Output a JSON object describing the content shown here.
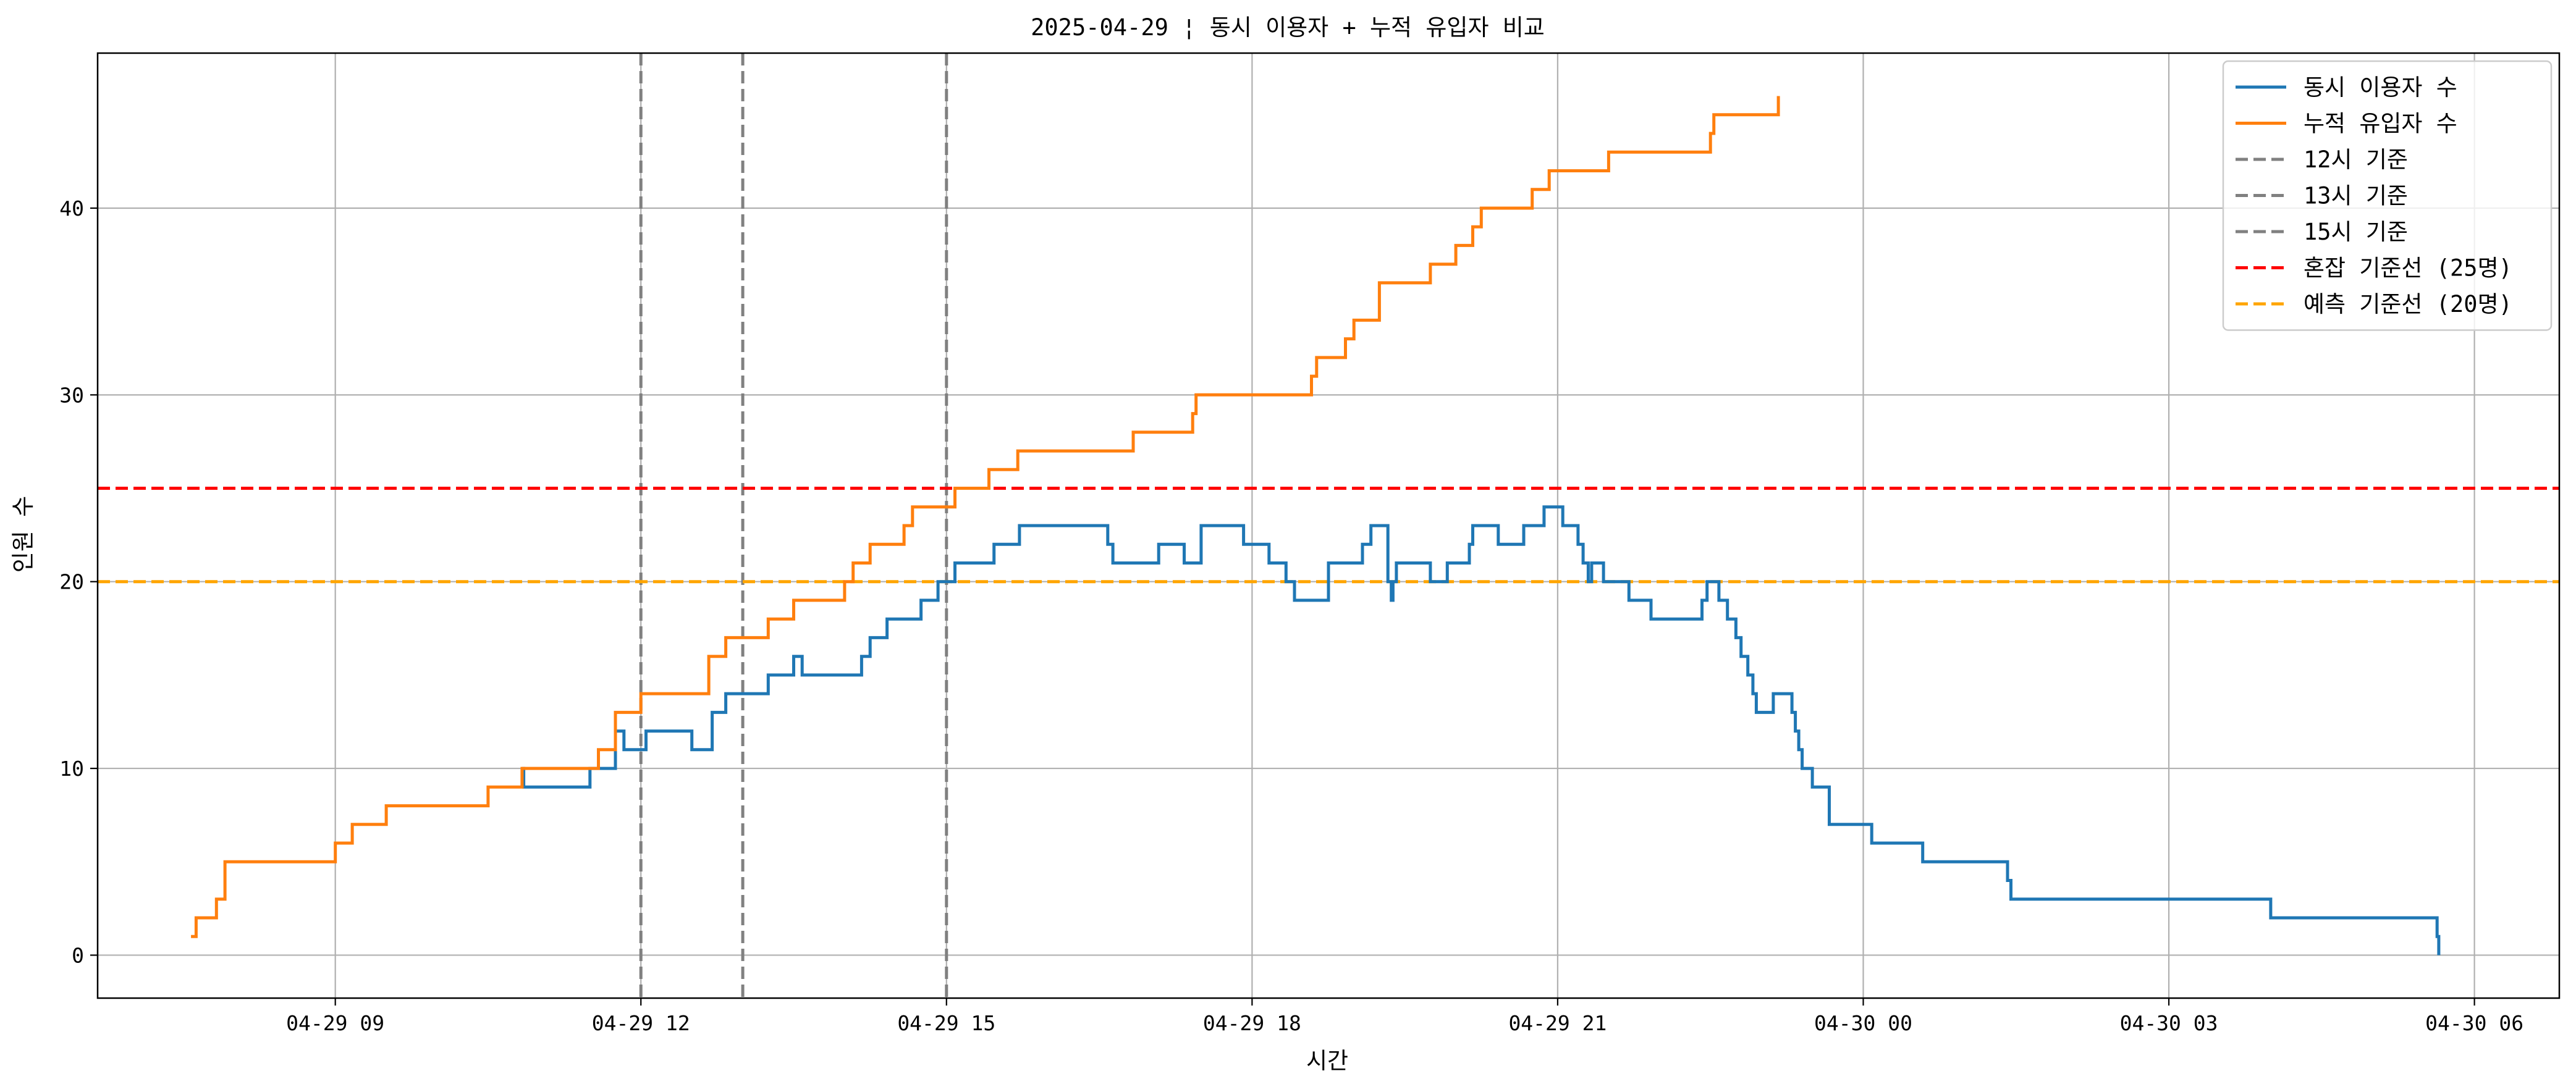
{
  "chart_data": {
    "type": "line",
    "title": "2025-04-29 ¦ 동시 이용자 + 누적 유입자 비교",
    "xlabel": "시간",
    "ylabel": "인원 수",
    "x_unit": "datetime",
    "xlim": [
      "2025-04-29 06:40",
      "2025-04-30 06:50"
    ],
    "ylim": [
      -2.3,
      48.3
    ],
    "x_ticks": [
      {
        "value": "2025-04-29 09:00",
        "label": "04-29 09"
      },
      {
        "value": "2025-04-29 12:00",
        "label": "04-29 12"
      },
      {
        "value": "2025-04-29 15:00",
        "label": "04-29 15"
      },
      {
        "value": "2025-04-29 18:00",
        "label": "04-29 18"
      },
      {
        "value": "2025-04-29 21:00",
        "label": "04-29 21"
      },
      {
        "value": "2025-04-30 00:00",
        "label": "04-30 00"
      },
      {
        "value": "2025-04-30 03:00",
        "label": "04-30 03"
      },
      {
        "value": "2025-04-30 06:00",
        "label": "04-30 06"
      }
    ],
    "y_ticks": [
      0,
      10,
      20,
      30,
      40
    ],
    "grid": true,
    "legend_position": "top-right",
    "series": [
      {
        "name": "동시 이용자 수",
        "color": "#1f77b4",
        "style": "steps-post",
        "points": [
          [
            "2025-04-29 10:50",
            10
          ],
          [
            "2025-04-29 10:51",
            9
          ],
          [
            "2025-04-29 11:30",
            10
          ],
          [
            "2025-04-29 11:45",
            12
          ],
          [
            "2025-04-29 11:50",
            11
          ],
          [
            "2025-04-29 12:03",
            12
          ],
          [
            "2025-04-29 12:30",
            11
          ],
          [
            "2025-04-29 12:42",
            13
          ],
          [
            "2025-04-29 12:50",
            14
          ],
          [
            "2025-04-29 13:15",
            15
          ],
          [
            "2025-04-29 13:30",
            16
          ],
          [
            "2025-04-29 13:35",
            15
          ],
          [
            "2025-04-29 14:10",
            16
          ],
          [
            "2025-04-29 14:15",
            17
          ],
          [
            "2025-04-29 14:25",
            18
          ],
          [
            "2025-04-29 14:45",
            19
          ],
          [
            "2025-04-29 14:55",
            20
          ],
          [
            "2025-04-29 15:05",
            21
          ],
          [
            "2025-04-29 15:28",
            22
          ],
          [
            "2025-04-29 15:43",
            23
          ],
          [
            "2025-04-29 16:35",
            22
          ],
          [
            "2025-04-29 16:38",
            21
          ],
          [
            "2025-04-29 17:05",
            22
          ],
          [
            "2025-04-29 17:20",
            21
          ],
          [
            "2025-04-29 17:30",
            23
          ],
          [
            "2025-04-29 17:55",
            22
          ],
          [
            "2025-04-29 18:10",
            21
          ],
          [
            "2025-04-29 18:20",
            20
          ],
          [
            "2025-04-29 18:25",
            19
          ],
          [
            "2025-04-29 18:45",
            21
          ],
          [
            "2025-04-29 19:05",
            22
          ],
          [
            "2025-04-29 19:10",
            23
          ],
          [
            "2025-04-29 19:20",
            20
          ],
          [
            "2025-04-29 19:22",
            19
          ],
          [
            "2025-04-29 19:23",
            20
          ],
          [
            "2025-04-29 19:25",
            21
          ],
          [
            "2025-04-29 19:45",
            20
          ],
          [
            "2025-04-29 19:55",
            21
          ],
          [
            "2025-04-29 20:08",
            22
          ],
          [
            "2025-04-29 20:10",
            23
          ],
          [
            "2025-04-29 20:25",
            22
          ],
          [
            "2025-04-29 20:40",
            23
          ],
          [
            "2025-04-29 20:52",
            24
          ],
          [
            "2025-04-29 21:03",
            23
          ],
          [
            "2025-04-29 21:12",
            22
          ],
          [
            "2025-04-29 21:15",
            21
          ],
          [
            "2025-04-29 21:18",
            20
          ],
          [
            "2025-04-29 21:20",
            21
          ],
          [
            "2025-04-29 21:27",
            20
          ],
          [
            "2025-04-29 21:42",
            19
          ],
          [
            "2025-04-29 21:55",
            18
          ],
          [
            "2025-04-29 22:25",
            19
          ],
          [
            "2025-04-29 22:28",
            20
          ],
          [
            "2025-04-29 22:35",
            19
          ],
          [
            "2025-04-29 22:40",
            18
          ],
          [
            "2025-04-29 22:45",
            17
          ],
          [
            "2025-04-29 22:48",
            16
          ],
          [
            "2025-04-29 22:52",
            15
          ],
          [
            "2025-04-29 22:55",
            14
          ],
          [
            "2025-04-29 22:57",
            13
          ],
          [
            "2025-04-29 23:07",
            14
          ],
          [
            "2025-04-29 23:18",
            13
          ],
          [
            "2025-04-29 23:20",
            12
          ],
          [
            "2025-04-29 23:22",
            11
          ],
          [
            "2025-04-29 23:24",
            10
          ],
          [
            "2025-04-29 23:30",
            9
          ],
          [
            "2025-04-29 23:40",
            7
          ],
          [
            "2025-04-30 00:05",
            6
          ],
          [
            "2025-04-30 00:35",
            5
          ],
          [
            "2025-04-30 01:25",
            4
          ],
          [
            "2025-04-30 01:27",
            3
          ],
          [
            "2025-04-30 04:00",
            2
          ],
          [
            "2025-04-30 05:38",
            1
          ],
          [
            "2025-04-30 05:39",
            0
          ]
        ]
      },
      {
        "name": "누적 유입자 수",
        "color": "#ff7f0e",
        "style": "steps-post",
        "points": [
          [
            "2025-04-29 07:35",
            1
          ],
          [
            "2025-04-29 07:38",
            2
          ],
          [
            "2025-04-29 07:50",
            3
          ],
          [
            "2025-04-29 07:55",
            5
          ],
          [
            "2025-04-29 09:00",
            6
          ],
          [
            "2025-04-29 09:10",
            7
          ],
          [
            "2025-04-29 09:30",
            8
          ],
          [
            "2025-04-29 10:30",
            9
          ],
          [
            "2025-04-29 10:50",
            10
          ],
          [
            "2025-04-29 11:35",
            11
          ],
          [
            "2025-04-29 11:45",
            13
          ],
          [
            "2025-04-29 12:00",
            14
          ],
          [
            "2025-04-29 12:40",
            16
          ],
          [
            "2025-04-29 12:50",
            17
          ],
          [
            "2025-04-29 13:15",
            18
          ],
          [
            "2025-04-29 13:30",
            19
          ],
          [
            "2025-04-29 14:00",
            20
          ],
          [
            "2025-04-29 14:05",
            21
          ],
          [
            "2025-04-29 14:15",
            22
          ],
          [
            "2025-04-29 14:35",
            23
          ],
          [
            "2025-04-29 14:40",
            24
          ],
          [
            "2025-04-29 15:05",
            25
          ],
          [
            "2025-04-29 15:25",
            26
          ],
          [
            "2025-04-29 15:42",
            27
          ],
          [
            "2025-04-29 16:50",
            28
          ],
          [
            "2025-04-29 17:25",
            29
          ],
          [
            "2025-04-29 17:27",
            30
          ],
          [
            "2025-04-29 18:35",
            31
          ],
          [
            "2025-04-29 18:38",
            32
          ],
          [
            "2025-04-29 18:55",
            33
          ],
          [
            "2025-04-29 19:00",
            34
          ],
          [
            "2025-04-29 19:15",
            36
          ],
          [
            "2025-04-29 19:45",
            37
          ],
          [
            "2025-04-29 20:00",
            38
          ],
          [
            "2025-04-29 20:10",
            39
          ],
          [
            "2025-04-29 20:15",
            40
          ],
          [
            "2025-04-29 20:45",
            41
          ],
          [
            "2025-04-29 20:55",
            42
          ],
          [
            "2025-04-29 21:30",
            43
          ],
          [
            "2025-04-29 22:30",
            44
          ],
          [
            "2025-04-29 22:32",
            45
          ],
          [
            "2025-04-29 23:10",
            46
          ]
        ]
      }
    ],
    "vertical_lines": [
      {
        "name": "12시 기준",
        "x": "2025-04-29 12:00",
        "color": "#808080",
        "style": "dashed"
      },
      {
        "name": "13시 기준",
        "x": "2025-04-29 13:00",
        "color": "#808080",
        "style": "dashed"
      },
      {
        "name": "15시 기준",
        "x": "2025-04-29 15:00",
        "color": "#808080",
        "style": "dashed"
      }
    ],
    "horizontal_lines": [
      {
        "name": "혼잡 기준선 (25명)",
        "y": 25,
        "color": "#ff0000",
        "style": "dashed"
      },
      {
        "name": "예측 기준선 (20명)",
        "y": 20,
        "color": "#ffa500",
        "style": "dashed"
      }
    ],
    "legend": [
      {
        "label": "동시 이용자 수",
        "color": "#1f77b4",
        "style": "solid"
      },
      {
        "label": "누적 유입자 수",
        "color": "#ff7f0e",
        "style": "solid"
      },
      {
        "label": "12시 기준",
        "color": "#808080",
        "style": "dashed"
      },
      {
        "label": "13시 기준",
        "color": "#808080",
        "style": "dashed"
      },
      {
        "label": "15시 기준",
        "color": "#808080",
        "style": "dashed"
      },
      {
        "label": "혼잡 기준선 (25명)",
        "color": "#ff0000",
        "style": "dashed"
      },
      {
        "label": "예측 기준선 (20명)",
        "color": "#ffa500",
        "style": "dashed"
      }
    ]
  }
}
